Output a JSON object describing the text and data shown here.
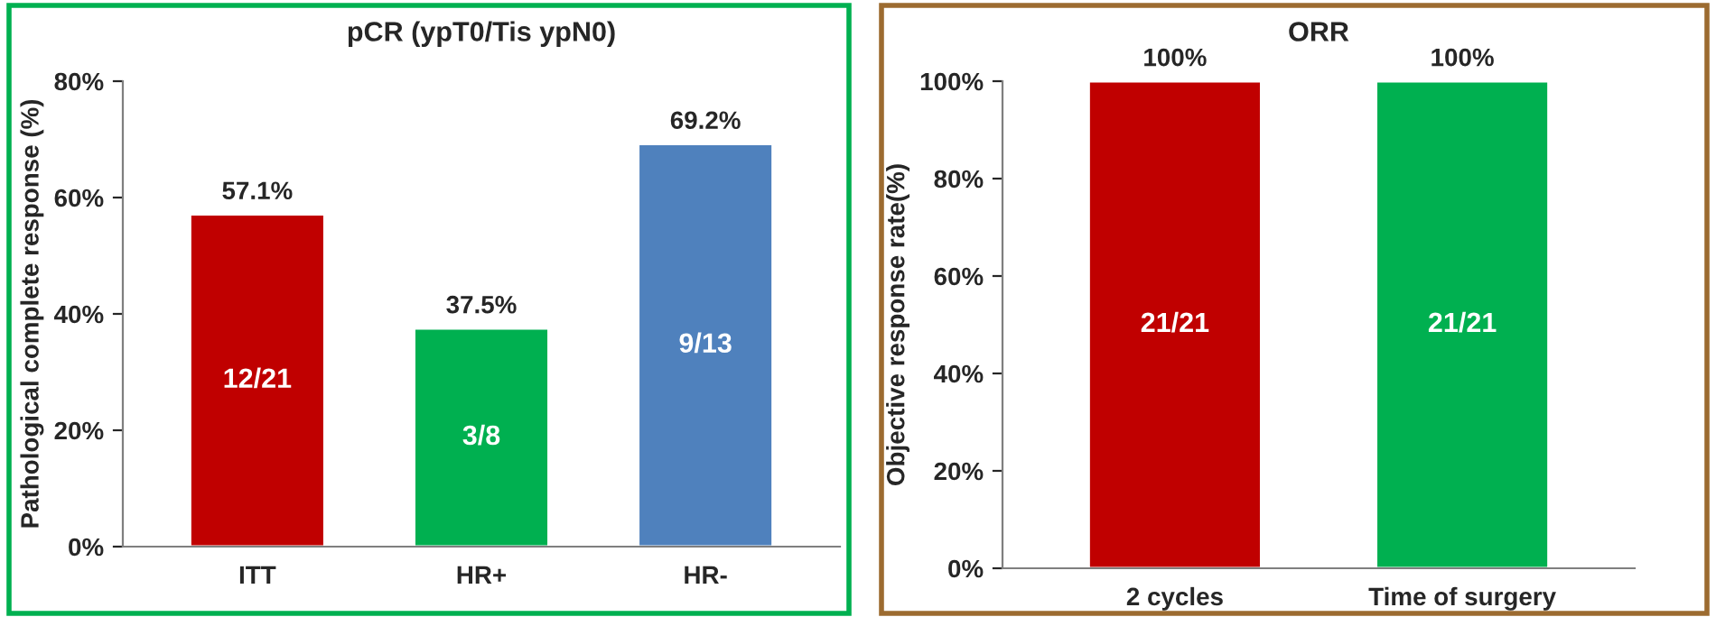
{
  "chart_data": [
    {
      "type": "bar",
      "title": "pCR (ypT0/Tis ypN0)",
      "ylabel": "Pathological complete response (%)",
      "categories": [
        "ITT",
        "HR+",
        "HR-"
      ],
      "values": [
        57.1,
        37.5,
        69.2
      ],
      "colors": [
        "#c00000",
        "#00b050",
        "#4f81bd"
      ],
      "value_labels": [
        "57.1%",
        "37.5%",
        "69.2%"
      ],
      "ylim": [
        0,
        80
      ],
      "yticks": [
        {
          "value": 0,
          "label": "0%"
        },
        {
          "value": 20,
          "label": "20%"
        },
        {
          "value": 40,
          "label": "40%"
        },
        {
          "value": 60,
          "label": "60%"
        },
        {
          "value": 80,
          "label": "80%"
        }
      ],
      "annotations": [
        "12/21",
        "3/8",
        "9/13"
      ],
      "grid": false,
      "legend": false
    },
    {
      "type": "bar",
      "title": "ORR",
      "ylabel": "Objective response rate(%)",
      "categories": [
        "2 cycles",
        "Time of surgery"
      ],
      "values": [
        100,
        100
      ],
      "colors": [
        "#c00000",
        "#00b050"
      ],
      "value_labels": [
        "100%",
        "100%"
      ],
      "ylim": [
        0,
        100
      ],
      "yticks": [
        {
          "value": 0,
          "label": "0%"
        },
        {
          "value": 20,
          "label": "20%"
        },
        {
          "value": 40,
          "label": "40%"
        },
        {
          "value": 60,
          "label": "60%"
        },
        {
          "value": 80,
          "label": "80%"
        },
        {
          "value": 100,
          "label": "100%"
        }
      ],
      "annotations": [
        "21/21",
        "21/21"
      ],
      "grid": false,
      "legend": false
    }
  ]
}
